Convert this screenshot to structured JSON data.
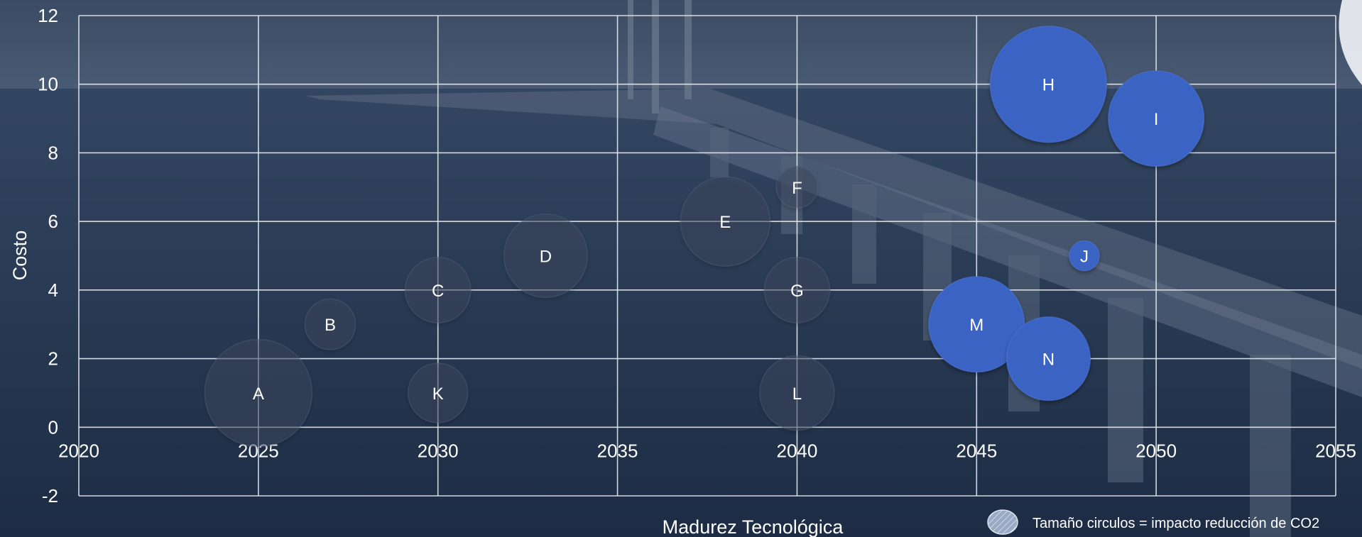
{
  "chart_data": {
    "type": "bubble",
    "xlabel": "Madurez Tecnológica",
    "ylabel": "Costo",
    "xlim": [
      2020,
      2055
    ],
    "ylim": [
      -2,
      12
    ],
    "xticks": [
      2020,
      2025,
      2030,
      2035,
      2040,
      2045,
      2050,
      2055
    ],
    "yticks": [
      -2,
      0,
      2,
      4,
      6,
      8,
      10,
      12
    ],
    "grid": true,
    "size_note": "Tamaño circulos = impacto reducción de CO2",
    "colors": {
      "highlight": "#3a63c4",
      "muted": "#3e4c62",
      "grid": "#e6e9ee",
      "text": "#ffffff"
    },
    "points": [
      {
        "label": "A",
        "x": 2025,
        "y": 1,
        "size": 3.6,
        "highlight": false
      },
      {
        "label": "B",
        "x": 2027,
        "y": 3,
        "size": 1.7,
        "highlight": false
      },
      {
        "label": "C",
        "x": 2030,
        "y": 4,
        "size": 2.2,
        "highlight": false
      },
      {
        "label": "D",
        "x": 2033,
        "y": 5,
        "size": 2.8,
        "highlight": false
      },
      {
        "label": "E",
        "x": 2038,
        "y": 6,
        "size": 3.0,
        "highlight": false
      },
      {
        "label": "F",
        "x": 2040,
        "y": 7,
        "size": 1.4,
        "highlight": false
      },
      {
        "label": "G",
        "x": 2040,
        "y": 4,
        "size": 2.2,
        "highlight": false
      },
      {
        "label": "H",
        "x": 2047,
        "y": 10,
        "size": 3.9,
        "highlight": true
      },
      {
        "label": "I",
        "x": 2050,
        "y": 9,
        "size": 3.2,
        "highlight": true
      },
      {
        "label": "J",
        "x": 2048,
        "y": 5,
        "size": 1.0,
        "highlight": true
      },
      {
        "label": "K",
        "x": 2030,
        "y": 1,
        "size": 2.0,
        "highlight": false
      },
      {
        "label": "L",
        "x": 2040,
        "y": 1,
        "size": 2.5,
        "highlight": false
      },
      {
        "label": "M",
        "x": 2045,
        "y": 3,
        "size": 3.2,
        "highlight": true
      },
      {
        "label": "N",
        "x": 2047,
        "y": 2,
        "size": 2.8,
        "highlight": true
      }
    ]
  }
}
